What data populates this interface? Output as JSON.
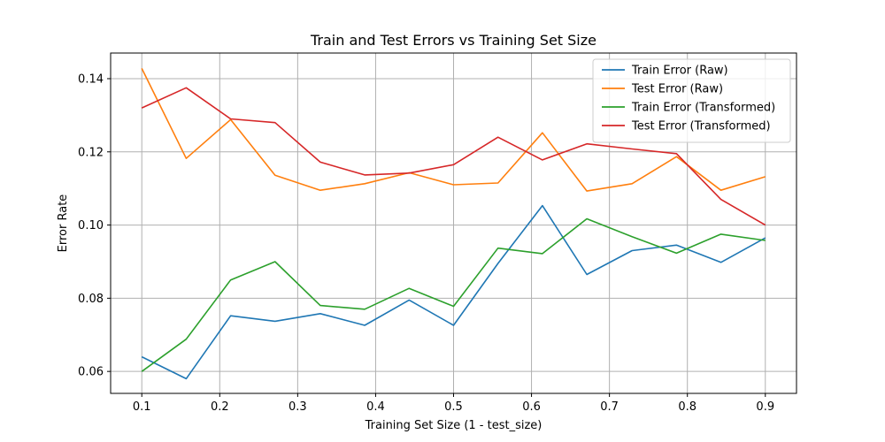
{
  "chart_data": {
    "type": "line",
    "title": "Train and Test Errors vs Training Set Size",
    "xlabel": "Training Set Size (1 - test_size)",
    "ylabel": "Error Rate",
    "xlim": [
      0.06,
      0.94
    ],
    "ylim": [
      0.054,
      0.147
    ],
    "xticks": [
      0.1,
      0.2,
      0.3,
      0.4,
      0.5,
      0.6,
      0.7,
      0.8,
      0.9
    ],
    "xtick_labels": [
      "0.1",
      "0.2",
      "0.3",
      "0.4",
      "0.5",
      "0.6",
      "0.7",
      "0.8",
      "0.9"
    ],
    "yticks": [
      0.06,
      0.08,
      0.1,
      0.12,
      0.14
    ],
    "ytick_labels": [
      "0.06",
      "0.08",
      "0.10",
      "0.12",
      "0.14"
    ],
    "grid": true,
    "legend_position": "top-right",
    "x": [
      0.1,
      0.157,
      0.214,
      0.271,
      0.329,
      0.386,
      0.443,
      0.5,
      0.557,
      0.614,
      0.671,
      0.729,
      0.786,
      0.843,
      0.9
    ],
    "series": [
      {
        "name": "Train Error (Raw)",
        "color": "#1f77b4",
        "values": [
          0.064,
          0.058,
          0.0752,
          0.0737,
          0.0758,
          0.0726,
          0.0795,
          0.0726,
          0.0895,
          0.1053,
          0.0865,
          0.093,
          0.0945,
          0.0898,
          0.0965
        ]
      },
      {
        "name": "Test Error (Raw)",
        "color": "#ff7f0e",
        "values": [
          0.1428,
          0.1182,
          0.1288,
          0.1136,
          0.1095,
          0.1113,
          0.1143,
          0.111,
          0.1115,
          0.1252,
          0.1093,
          0.1113,
          0.1187,
          0.1095,
          0.1132
        ]
      },
      {
        "name": "Train Error (Transformed)",
        "color": "#2ca02c",
        "values": [
          0.06,
          0.0688,
          0.085,
          0.09,
          0.078,
          0.077,
          0.0827,
          0.0778,
          0.0937,
          0.0922,
          0.1017,
          0.0968,
          0.0923,
          0.0975,
          0.0958
        ]
      },
      {
        "name": "Test Error (Transformed)",
        "color": "#d62728",
        "values": [
          0.132,
          0.1375,
          0.129,
          0.128,
          0.1172,
          0.1137,
          0.1142,
          0.1165,
          0.124,
          0.1178,
          0.1222,
          0.1208,
          0.1195,
          0.107,
          0.1
        ]
      }
    ]
  }
}
